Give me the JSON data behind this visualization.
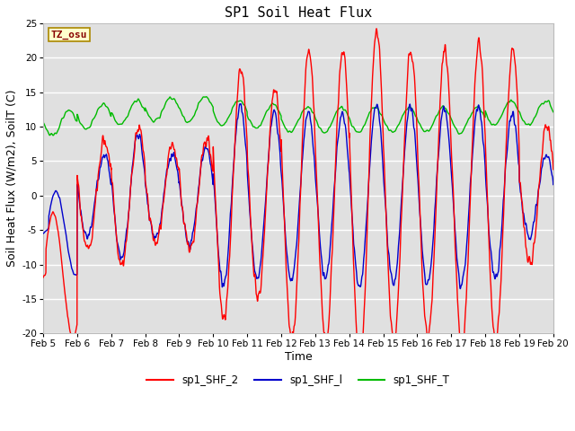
{
  "title": "SP1 Soil Heat Flux",
  "xlabel": "Time",
  "ylabel": "Soil Heat Flux (W/m2), SoilT (C)",
  "ylim": [
    -20,
    25
  ],
  "xlim": [
    0,
    360
  ],
  "tick_labels": [
    "Feb 5",
    "Feb 6",
    "Feb 7",
    "Feb 8",
    "Feb 9",
    "Feb 10",
    "Feb 11",
    "Feb 12",
    "Feb 13",
    "Feb 14",
    "Feb 15",
    "Feb 16",
    "Feb 17",
    "Feb 18",
    "Feb 19",
    "Feb 20"
  ],
  "tick_positions": [
    0,
    24,
    48,
    72,
    96,
    120,
    144,
    168,
    192,
    216,
    240,
    264,
    288,
    312,
    336,
    360
  ],
  "color_shf2": "#ff0000",
  "color_shf1": "#0000cc",
  "color_shfT": "#00bb00",
  "bg_color": "#e0e0e0",
  "tz_label": "TZ_osu",
  "legend_labels": [
    "sp1_SHF_2",
    "sp1_SHF_l",
    "sp1_SHF_T"
  ],
  "title_fontsize": 11,
  "axis_fontsize": 9,
  "tick_fontsize": 7.5,
  "legend_fontsize": 8.5
}
